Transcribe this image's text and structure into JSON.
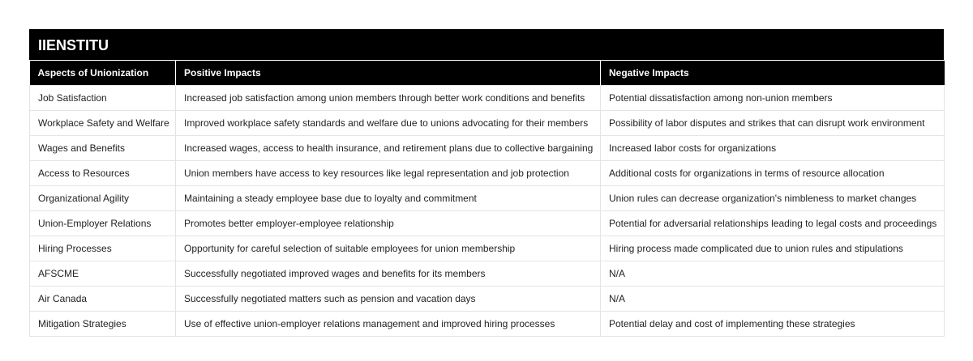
{
  "header": {
    "title": "IIENSTITU"
  },
  "table": {
    "columns": [
      "Aspects of Unionization",
      "Positive Impacts",
      "Negative Impacts"
    ],
    "rows": [
      [
        "Job Satisfaction",
        "Increased job satisfaction among union members through better work conditions and benefits",
        "Potential dissatisfaction among non-union members"
      ],
      [
        "Workplace Safety and Welfare",
        "Improved workplace safety standards and welfare due to unions advocating for their members",
        "Possibility of labor disputes and strikes that can disrupt work environment"
      ],
      [
        "Wages and Benefits",
        "Increased wages, access to health insurance, and retirement plans due to collective bargaining",
        "Increased labor costs for organizations"
      ],
      [
        "Access to Resources",
        "Union members have access to key resources like legal representation and job protection",
        "Additional costs for organizations in terms of resource allocation"
      ],
      [
        "Organizational Agility",
        "Maintaining a steady employee base due to loyalty and commitment",
        "Union rules can decrease organization's nimbleness to market changes"
      ],
      [
        "Union-Employer Relations",
        "Promotes better employer-employee relationship",
        "Potential for adversarial relationships leading to legal costs and proceedings"
      ],
      [
        "Hiring Processes",
        "Opportunity for careful selection of suitable employees for union membership",
        "Hiring process made complicated due to union rules and stipulations"
      ],
      [
        "AFSCME",
        "Successfully negotiated improved wages and benefits for its members",
        "N/A"
      ],
      [
        "Air Canada",
        "Successfully negotiated matters such as pension and vacation days",
        "N/A"
      ],
      [
        "Mitigation Strategies",
        "Use of effective union-employer relations management and improved hiring processes",
        "Potential delay and cost of implementing these strategies"
      ]
    ]
  }
}
